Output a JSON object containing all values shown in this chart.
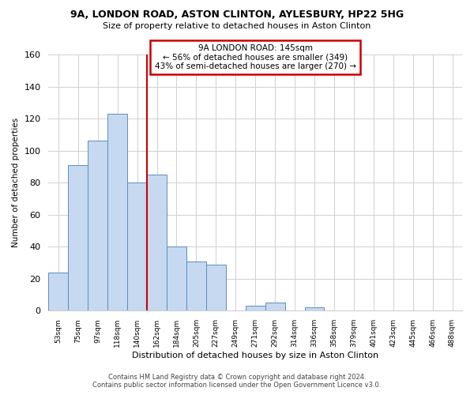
{
  "title1": "9A, LONDON ROAD, ASTON CLINTON, AYLESBURY, HP22 5HG",
  "title2": "Size of property relative to detached houses in Aston Clinton",
  "xlabel": "Distribution of detached houses by size in Aston Clinton",
  "ylabel": "Number of detached properties",
  "bar_labels": [
    "53sqm",
    "75sqm",
    "97sqm",
    "118sqm",
    "140sqm",
    "162sqm",
    "184sqm",
    "205sqm",
    "227sqm",
    "249sqm",
    "271sqm",
    "292sqm",
    "314sqm",
    "336sqm",
    "358sqm",
    "379sqm",
    "401sqm",
    "423sqm",
    "445sqm",
    "466sqm",
    "488sqm"
  ],
  "bar_values": [
    24,
    91,
    106,
    123,
    80,
    85,
    40,
    31,
    29,
    0,
    3,
    5,
    0,
    2,
    0,
    0,
    0,
    0,
    0,
    0,
    0
  ],
  "bar_color": "#c6d9f0",
  "bar_edge_color": "#5a8fc2",
  "property_line_color": "#cc0000",
  "annotation_title": "9A LONDON ROAD: 145sqm",
  "annotation_line1": "← 56% of detached houses are smaller (349)",
  "annotation_line2": "43% of semi-detached houses are larger (270) →",
  "annotation_box_color": "#cc0000",
  "ylim": [
    0,
    160
  ],
  "footer1": "Contains HM Land Registry data © Crown copyright and database right 2024.",
  "footer2": "Contains public sector information licensed under the Open Government Licence v3.0.",
  "bg_color": "#ffffff",
  "grid_color": "#d0d0d0"
}
